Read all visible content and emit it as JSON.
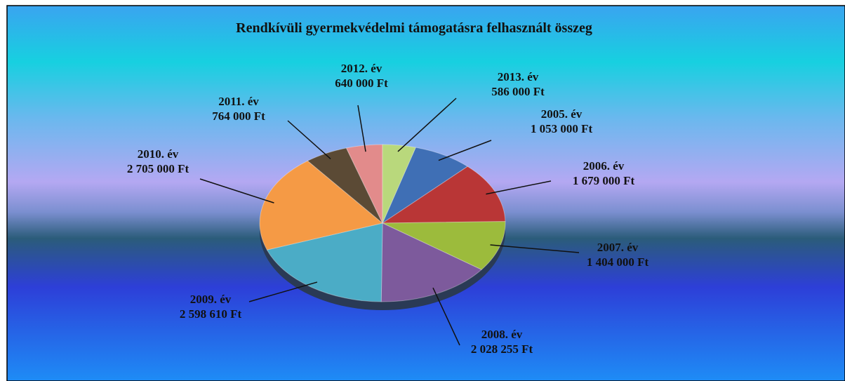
{
  "chart_data": {
    "type": "pie",
    "title": "Rendkívüli gyermekvédelmi támogatásra felhasznált összeg",
    "categories": [
      "2005. év",
      "2006. év",
      "2007. év",
      "2008. év",
      "2009. év",
      "2010. év",
      "2011. év",
      "2012. év",
      "2013. év"
    ],
    "values": [
      1053000,
      1679000,
      1404000,
      2028255,
      2598610,
      2705000,
      764000,
      640000,
      586000
    ],
    "value_labels": [
      "1 053 000 Ft",
      "1 679 000 Ft",
      "1 404 000 Ft",
      "2 028 255 Ft",
      "2 598 610 Ft",
      "2 705 000 Ft",
      "764 000 Ft",
      "640 000 Ft",
      "586 000 Ft"
    ],
    "colors": [
      "#3f6fb5",
      "#b93636",
      "#9cbb3c",
      "#7d5a9c",
      "#4bacc6",
      "#f59a45",
      "#5b4a35",
      "#e28b8b",
      "#b9d87c"
    ]
  }
}
